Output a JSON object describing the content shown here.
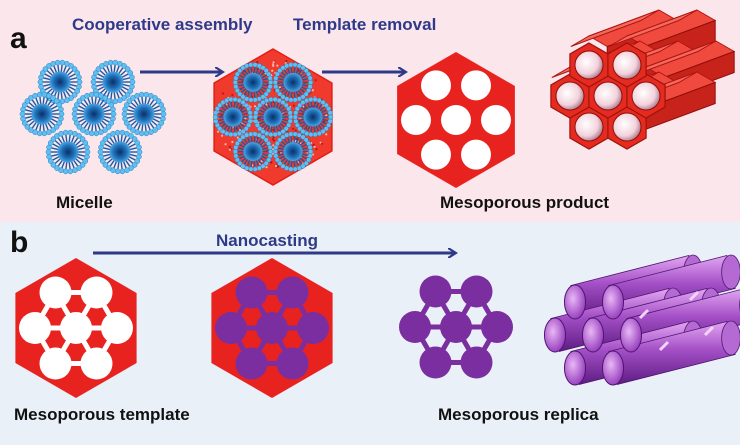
{
  "panel_a": {
    "letter": "a",
    "step1": "Cooperative assembly",
    "step2": "Template removal",
    "label_left": "Micelle",
    "label_right": "Mesoporous product"
  },
  "panel_b": {
    "letter": "b",
    "step": "Nanocasting",
    "label_left": "Mesoporous template",
    "label_right": "Mesoporous replica"
  },
  "colors": {
    "panel_a_bg": "#fbe6ec",
    "panel_b_bg": "#eaf0f8",
    "arrow": "#2e3a87",
    "label_blue": "#2e3a87",
    "silica_red": "#e8231f",
    "replica_purple": "#7a2ea0",
    "micelle_blue": "#1f6fb5"
  },
  "icons": [
    "micelle-icon",
    "hex-composite-icon",
    "hex-porous-icon",
    "hex-prism-3d-icon",
    "hex-template-icon",
    "hex-filled-template-icon",
    "rod-network-icon",
    "rod-bundle-3d-icon"
  ]
}
